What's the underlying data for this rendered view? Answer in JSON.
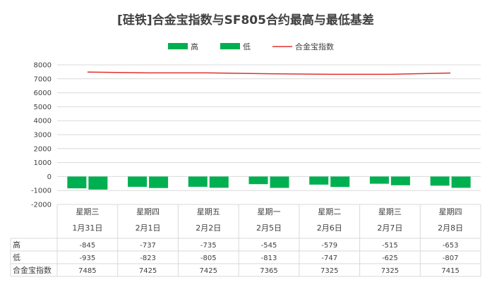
{
  "chart_data": {
    "type": "bar",
    "title": "[硅铁]合金宝指数与SF805合约最高与最低基差",
    "categories": [
      [
        "星期三",
        "1月31日"
      ],
      [
        "星期四",
        "2月1日"
      ],
      [
        "星期五",
        "2月2日"
      ],
      [
        "星期一",
        "2月5日"
      ],
      [
        "星期二",
        "2月6日"
      ],
      [
        "星期三",
        "2月7日"
      ],
      [
        "星期四",
        "2月8日"
      ]
    ],
    "series": [
      {
        "name": "高",
        "type": "bar",
        "color": "#00b050",
        "values": [
          -845,
          -737,
          -735,
          -545,
          -579,
          -515,
          -653
        ]
      },
      {
        "name": "低",
        "type": "bar",
        "color": "#00b050",
        "values": [
          -935,
          -823,
          -805,
          -813,
          -747,
          -625,
          -807
        ]
      },
      {
        "name": "合金宝指数",
        "type": "line",
        "color": "#e03030",
        "values": [
          7485,
          7425,
          7425,
          7365,
          7325,
          7325,
          7415
        ]
      }
    ],
    "ylim": [
      -2000,
      8000
    ],
    "yticks": [
      -2000,
      -1000,
      0,
      1000,
      2000,
      3000,
      4000,
      5000,
      6000,
      7000,
      8000
    ],
    "ytick_labels": [
      "-2000",
      "-1000",
      "0",
      "1000",
      "2000",
      "3000",
      "4000",
      "5000",
      "6000",
      "7000",
      "8000"
    ],
    "grid": true,
    "legend_position": "top",
    "data_table": true
  }
}
